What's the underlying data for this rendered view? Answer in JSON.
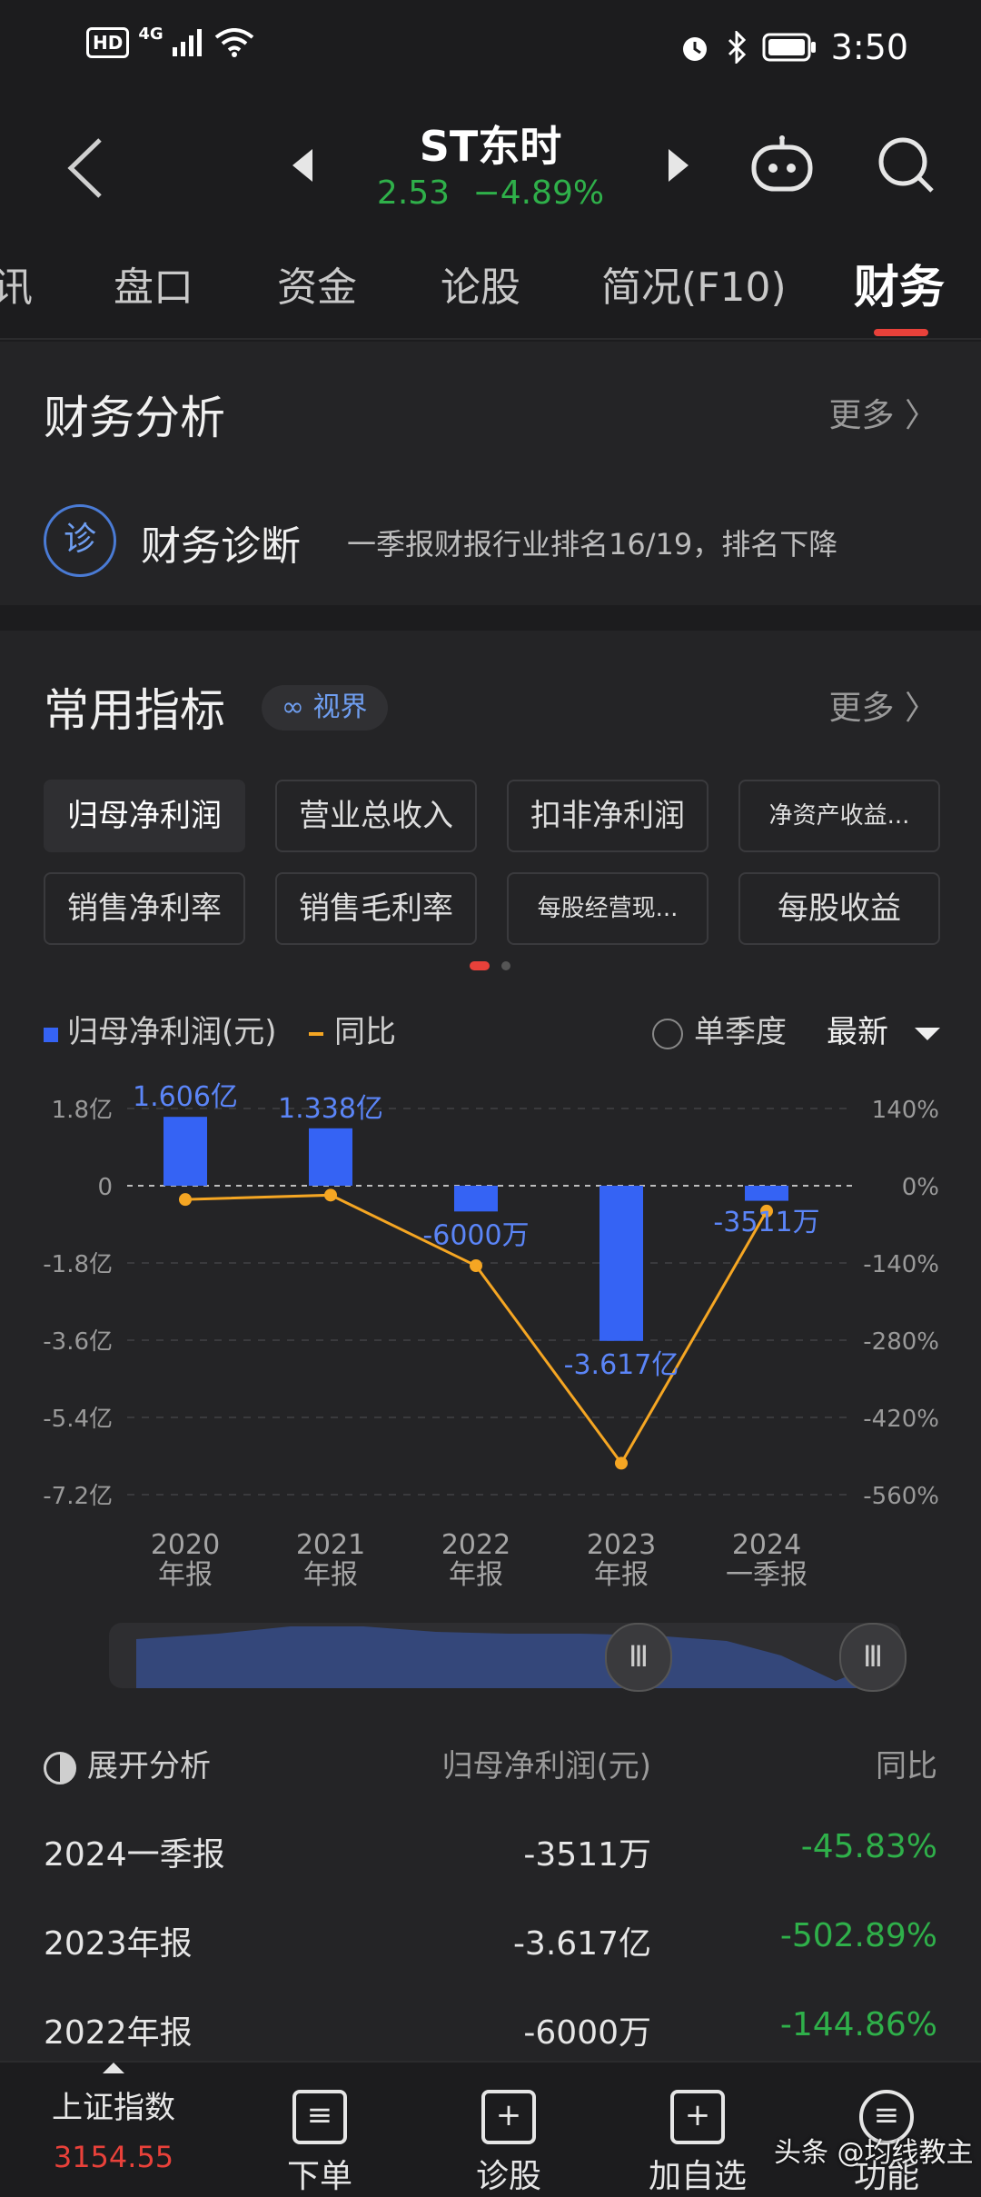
{
  "status_bar": {
    "hd": "HD",
    "network": "4G",
    "time": "3:50"
  },
  "header": {
    "stock_name": "ST东时",
    "price": "2.53",
    "change": "−4.89%"
  },
  "tabs": [
    {
      "label": "讯"
    },
    {
      "label": "盘口"
    },
    {
      "label": "资金"
    },
    {
      "label": "论股"
    },
    {
      "label": "简况(F10)"
    },
    {
      "label": "财务"
    }
  ],
  "financial_analysis": {
    "title": "财务分析",
    "more": "更多 〉",
    "diagnosis_icon": "诊",
    "diagnosis_label": "财务诊断",
    "diagnosis_text": "一季报财报行业排名16/19，排名下降"
  },
  "indicators": {
    "title": "常用指标",
    "badge": "∞ 视界",
    "more": "更多 〉",
    "pills": [
      {
        "label": "归母净利润"
      },
      {
        "label": "营业总收入"
      },
      {
        "label": "扣非净利润"
      },
      {
        "label": "净资产收益..."
      },
      {
        "label": "销售净利率"
      },
      {
        "label": "销售毛利率"
      },
      {
        "label": "每股经营现..."
      },
      {
        "label": "每股收益"
      }
    ],
    "legend_bar": "归母净利润(元)",
    "legend_line": "同比",
    "single_quarter": "单季度",
    "latest": "最新"
  },
  "chart_data": {
    "type": "bar",
    "categories": [
      "2020\n年报",
      "2021\n年报",
      "2022\n年报",
      "2023\n年报",
      "2024\n一季报"
    ],
    "category_labels": [
      [
        "2020",
        "年报"
      ],
      [
        "2021",
        "年报"
      ],
      [
        "2022",
        "年报"
      ],
      [
        "2023",
        "年报"
      ],
      [
        "2024",
        "一季报"
      ]
    ],
    "series": [
      {
        "name": "归母净利润(元)",
        "values_yi": [
          1.606,
          1.338,
          -0.6,
          -3.617,
          -0.3511
        ],
        "labels": [
          "1.606亿",
          "1.338亿",
          "-6000万",
          "-3.617亿",
          "-3511万"
        ],
        "color": "#3563f4"
      },
      {
        "name": "同比",
        "values_pct": [
          -25,
          -17,
          -145,
          -503,
          -46
        ],
        "color": "#f5a623"
      }
    ],
    "left_ticks": [
      "1.8亿",
      "0",
      "-1.8亿",
      "-3.6亿",
      "-5.4亿",
      "-7.2亿"
    ],
    "right_ticks": [
      "140%",
      "0%",
      "-140%",
      "-280%",
      "-420%",
      "-560%"
    ],
    "ylim_left": [
      -7.2,
      1.8
    ],
    "ylim_right": [
      -560,
      140
    ]
  },
  "table": {
    "header_label": "展开分析",
    "header_value": "归母净利润(元)",
    "header_pct": "同比",
    "rows": [
      {
        "period": "2024一季报",
        "value": "-3511万",
        "pct": "-45.83%"
      },
      {
        "period": "2023年报",
        "value": "-3.617亿",
        "pct": "-502.89%"
      },
      {
        "period": "2022年报",
        "value": "-6000万",
        "pct": "-144.86%"
      }
    ]
  },
  "bottom_nav": {
    "index_name": "上证指数",
    "index_value": "3154.55",
    "items": [
      {
        "label": "下单"
      },
      {
        "label": "诊股"
      },
      {
        "label": "加自选"
      },
      {
        "label": "功能"
      }
    ],
    "watermark": "头条 @均线教主"
  }
}
